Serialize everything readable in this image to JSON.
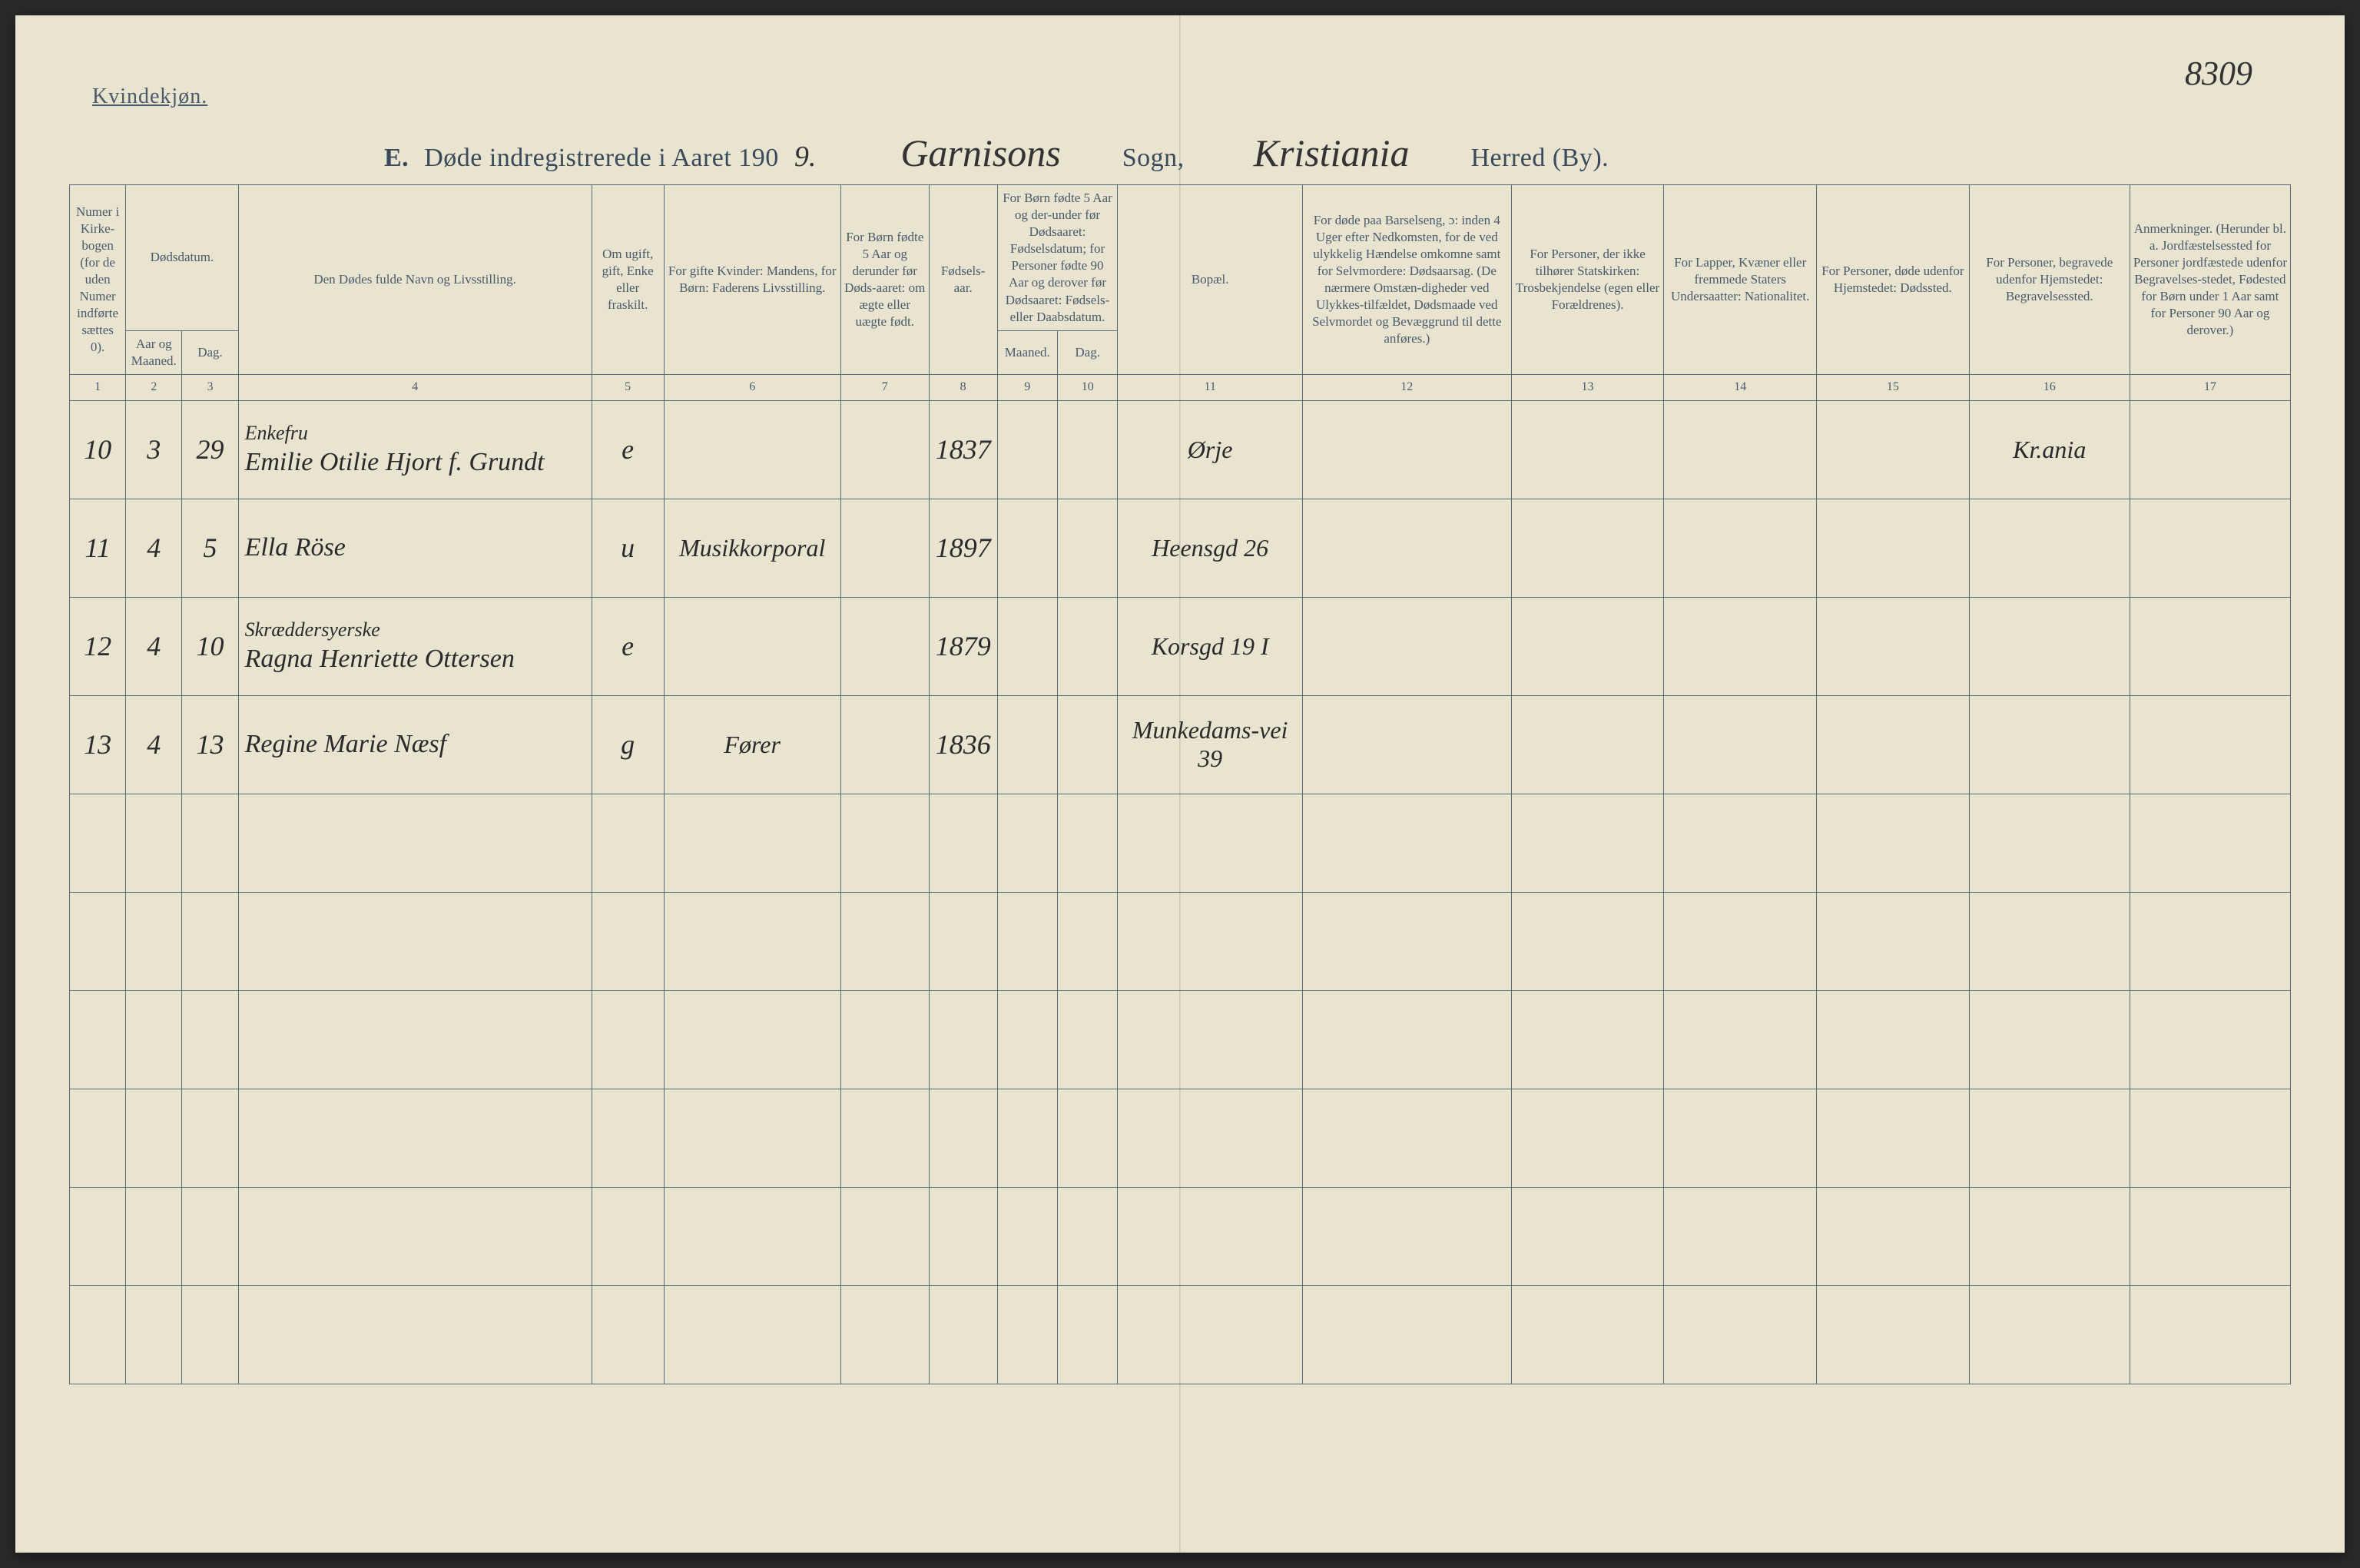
{
  "corner_page_number": "8309",
  "gender_label": "Kvindekjøn.",
  "title": {
    "prefix": "E.",
    "printed_before_year": "Døde indregistrerede i Aaret 190",
    "year_suffix": "9.",
    "sogn_handwritten": "Garnisons",
    "sogn_label": "Sogn,",
    "herred_handwritten": "Kristiania",
    "herred_label": "Herred (By)."
  },
  "columns": {
    "1": "Numer i Kirke-bogen (for de uden Numer indførte sættes 0).",
    "2_3_group": "Dødsdatum.",
    "2": "Aar og Maaned.",
    "3": "Dag.",
    "4": "Den Dødes fulde Navn og Livsstilling.",
    "5": "Om ugift, gift, Enke eller fraskilt.",
    "6": "For gifte Kvinder: Mandens, for Børn: Faderens Livsstilling.",
    "7": "For Børn fødte 5 Aar og derunder før Døds-aaret: om ægte eller uægte født.",
    "8": "Fødsels-aar.",
    "9_10_group": "For Børn fødte 5 Aar og der-under før Dødsaaret: Fødselsdatum; for Personer fødte 90 Aar og derover før Dødsaaret: Fødsels- eller Daabsdatum.",
    "9": "Maaned.",
    "10": "Dag.",
    "11": "Bopæl.",
    "12": "For døde paa Barselseng, ɔ: inden 4 Uger efter Nedkomsten, for de ved ulykkelig Hændelse omkomne samt for Selvmordere: Dødsaarsag. (De nærmere Omstæn-digheder ved Ulykkes-tilfældet, Dødsmaade ved Selvmordet og Bevæggrund til dette anføres.)",
    "13": "For Personer, der ikke tilhører Statskirken: Trosbekjendelse (egen eller Forældrenes).",
    "14": "For Lapper, Kvæner eller fremmede Staters Undersaatter: Nationalitet.",
    "15": "For Personer, døde udenfor Hjemstedet: Dødssted.",
    "16": "For Personer, begravede udenfor Hjemstedet: Begravelsessted.",
    "17": "Anmerkninger. (Herunder bl. a. Jordfæstelsessted for Personer jordfæstede udenfor Begravelses-stedet, Fødested for Børn under 1 Aar samt for Personer 90 Aar og derover.)"
  },
  "colnums": [
    "1",
    "2",
    "3",
    "4",
    "5",
    "6",
    "7",
    "8",
    "9",
    "10",
    "11",
    "12",
    "13",
    "14",
    "15",
    "16",
    "17"
  ],
  "rows": [
    {
      "num": "10",
      "month": "3",
      "day": "29",
      "occupation": "Enkefru",
      "name": "Emilie Otilie Hjort f. Grundt",
      "marital": "e",
      "father_occ": "",
      "legit": "",
      "birth_year": "1837",
      "b_month": "",
      "b_day": "",
      "residence": "Ørje",
      "cause": "",
      "faith": "",
      "nationality": "",
      "death_place": "",
      "burial_place": "Kr.ania",
      "remarks": ""
    },
    {
      "num": "11",
      "month": "4",
      "day": "5",
      "occupation": "",
      "name": "Ella Röse",
      "marital": "u",
      "father_occ": "Musikkorporal",
      "legit": "",
      "birth_year": "1897",
      "b_month": "",
      "b_day": "",
      "residence": "Heensgd 26",
      "cause": "",
      "faith": "",
      "nationality": "",
      "death_place": "",
      "burial_place": "",
      "remarks": ""
    },
    {
      "num": "12",
      "month": "4",
      "day": "10",
      "occupation": "Skræddersyerske",
      "name": "Ragna Henriette Ottersen",
      "marital": "e",
      "father_occ": "",
      "legit": "",
      "birth_year": "1879",
      "b_month": "",
      "b_day": "",
      "residence": "Korsgd 19 I",
      "cause": "",
      "faith": "",
      "nationality": "",
      "death_place": "",
      "burial_place": "",
      "remarks": ""
    },
    {
      "num": "13",
      "month": "4",
      "day": "13",
      "occupation": "",
      "name": "Regine Marie Næsf",
      "marital": "g",
      "father_occ": "Fører",
      "legit": "",
      "birth_year": "1836",
      "b_month": "",
      "b_day": "",
      "residence": "Munkedams-vei 39",
      "cause": "",
      "faith": "",
      "nationality": "",
      "death_place": "",
      "burial_place": "",
      "remarks": ""
    }
  ],
  "blank_row_count": 6,
  "colors": {
    "paper": "#e8e4d0",
    "ink_printed": "#4a5a6a",
    "ink_handwritten": "#2a2a2a",
    "rule": "#5a6a7a",
    "background": "#2a2a2a"
  },
  "typography": {
    "printed_header_fontsize_pt": 17,
    "title_fontsize_pt": 34,
    "handwritten_fontsize_pt": 36
  }
}
